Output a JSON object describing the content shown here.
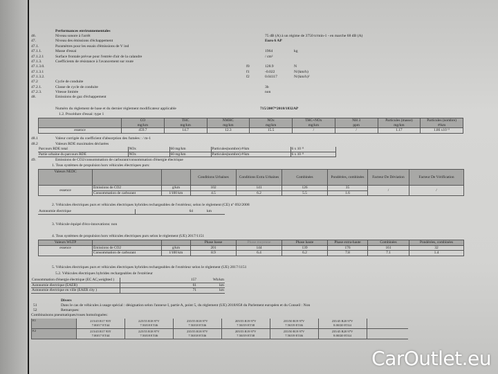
{
  "header": {
    "title": "Performances environnementales"
  },
  "items": [
    {
      "num": "46.",
      "label": "Niveau sonore à l'arrêt",
      "value": "75 dB (A)   à un régime de 3750 tr/min-1 - en marche     68 dB (A)"
    },
    {
      "num": "47.",
      "label": "Niveau des émissions d'échappement",
      "value": "Euro 6 AP"
    },
    {
      "num": "47.1.",
      "label": "Paramètres pour les essais d'émissions de V ind",
      "value": ""
    },
    {
      "num": "47.1.1.",
      "label": "Masse d'essai",
      "value": "1964",
      "unit": "kg"
    },
    {
      "num": "47.1.2.1",
      "label": "Surface frontale prévue pour l'entrée d'air de la calandre",
      "value": "/ cm²"
    },
    {
      "num": "47.1.3.",
      "label": "Coefficients de résistance à l'avancement sur route",
      "value": ""
    },
    {
      "num": "47.1.3.0.",
      "sym": "f0",
      "value": "128.9",
      "unit": "N"
    },
    {
      "num": "47.1.3.1",
      "sym": "f1",
      "value": "-0.022",
      "unit": "N/(km/h)"
    },
    {
      "num": "47.1.3.2.",
      "sym": "f2",
      "value": "0.04117",
      "unit": "N/(km/h)²"
    },
    {
      "num": "47.2",
      "label": "Cycle de conduite",
      "value": ""
    },
    {
      "num": "47.2.1.",
      "label": "Classe de cycle de conduite",
      "value": "3b"
    },
    {
      "num": "47.2.3.",
      "label": "Vitesse limitée",
      "value": "non"
    },
    {
      "num": "48.",
      "label": "Emissions de gaz d'échappement",
      "value": ""
    }
  ],
  "regulation": {
    "label": "Numéro du règlement de base et du dernier règlement modificateur applicable",
    "value": "715/2007*2018/1832AP"
  },
  "type1": {
    "title": "1.2. Procédure d'essai: type 1",
    "headers": [
      [
        "CO",
        "mg/km"
      ],
      [
        "THC",
        "mg/km"
      ],
      [
        "NMHC",
        "mg/km"
      ],
      [
        "NOx",
        "mg/km"
      ],
      [
        "THC+NOx",
        "mg/km"
      ],
      [
        "NH 3",
        "ppm"
      ],
      [
        "Particules (masse)",
        "mg/km"
      ],
      [
        "Particules (nombre)",
        "#/km"
      ]
    ],
    "row": {
      "label": "essence",
      "values": [
        "459.7",
        "14.7",
        "12.3",
        "15.5",
        "/",
        "/",
        "1.17",
        "1.86 x10 ¹¹"
      ]
    }
  },
  "s481": {
    "num": "48.1",
    "label": "Valeur corrigée du coefficient d'absorption des fumées : / m-1"
  },
  "s482": {
    "num": "48.2",
    "label": "Valeurs RDE maximales déclarées"
  },
  "rde": [
    {
      "label": "Parcours RDE total",
      "pollutant": "NOx",
      "value": "60 mg/km",
      "pn_label": "Particules(nombre)  #/km",
      "pn_value": "6 x 10 ¹¹"
    },
    {
      "label": "Partie urbaine du parcours RDE",
      "pollutant": "NOx",
      "value": "60 mg/km",
      "pn_label": "Particules(nombre)  #/km",
      "pn_value": "6 x 10 ¹¹"
    }
  ],
  "s49": {
    "num": "49.",
    "label": "Emissions de CO2/consommation de carburant/consommation d'énergie électrique"
  },
  "nedc": {
    "title": "1. Tous systèmes de propulsion hors véhicules électriques purs:",
    "corner": "Valeurs NEDC",
    "headers": [
      "Conditions Urbaines",
      "Conditions Extra Urbaines",
      "Combinées",
      "Pondérées, combinées",
      "Facteur De Déviation",
      "Facteur De Vérification"
    ],
    "fuel": "essence",
    "rows": [
      {
        "label": "Émissions de CO2",
        "unit": "g/km",
        "values": [
          "102",
          "141",
          "126",
          "35"
        ]
      },
      {
        "label": "Consommation de carburant",
        "unit": "l/100 km",
        "values": [
          "4.5",
          "6.2",
          "5.5",
          "1.6"
        ]
      }
    ],
    "deviation": "/",
    "verification": "/"
  },
  "ev692": {
    "title": "2. Véhicules électriques purs et véhicules électriques hybrides rechargeables de l'extérieur, selon le règlement (CE) nº 692/2008",
    "label": "Autonomie électrique",
    "value": "64",
    "unit": "km"
  },
  "eco": {
    "title": "3. Véhicule équipé d'éco-innovations: non"
  },
  "wltp": {
    "title": "4. Tous systèmes de propulsion hors véhicules électriques purs selon le règlement (UE) 2017/1151",
    "corner": "Valeurs WLTP",
    "headers": [
      "Phase basse",
      "Phase moyenne",
      "Phase haute",
      "Phase extra-haute",
      "Combinées",
      "Pondérées, combinées"
    ],
    "fuel": "essence",
    "rows": [
      {
        "label": "Émissions de CO2",
        "unit": "g/km",
        "values": [
          "201",
          "144",
          "139",
          "176",
          "161",
          "32"
        ]
      },
      {
        "label": "Consommation de carburant",
        "unit": "l/100 km",
        "values": [
          "8.9",
          "6.4",
          "6.2",
          "7.8",
          "7.1",
          "1.4"
        ]
      }
    ]
  },
  "ev1151": {
    "title": "5. Véhicules électriques purs et véhicules électriques hybrides rechargeables de l'extérieur selon le règlement (UE) 2017/1151",
    "subtitle": "5.2. Véhicules électriques hybrides rechargeables de l'extérieur",
    "rows": [
      {
        "label": "Consommation d'énergie électrique (EC AC,weighted )",
        "value": "157",
        "unit": "Wh/km"
      },
      {
        "label": "Autonomie électrique (EAER)",
        "value": "61",
        "unit": "km"
      },
      {
        "label": "Autonomie électrique en ville (EAER city )",
        "value": "71",
        "unit": "km"
      }
    ]
  },
  "divers": {
    "title": "Divers",
    "s51": {
      "num": "51",
      "label": "Dans le cas de véhicules à usage spécial : désignation selon l'annexe I, partie A, point 5, du règlement (UE) 2018/858 du Parlement européen et du Conseil : Non"
    },
    "s52": {
      "num": "52",
      "label": "Remarques:"
    },
    "tires_title": "Combinaisons pneumatiques/roues homologuées:",
    "tires": [
      {
        "axle": "E1",
        "cells": [
          [
            "215/45 R17 93Y",
            "7.00J17 ET44"
          ],
          [
            "225/55 R18 97V",
            "7.50J18 ET46"
          ],
          [
            "235/55 R18 97V",
            "7.50J18 ET46"
          ],
          [
            "205/55 R19 97V",
            "7.50J19 ET38"
          ],
          [
            "235/50 R19 97V",
            "7.50J19 ET46"
          ],
          [
            "235/45 R20 97V",
            "8.00J20 ET44"
          ]
        ]
      },
      {
        "axle": "E2",
        "cells": [
          [
            "215/45 R17 93Y",
            "7.00J17 ET44"
          ],
          [
            "225/55 R18 97V",
            "7.50J18 ET46"
          ],
          [
            "235/55 R18 97V",
            "7.50J18 ET46"
          ],
          [
            "205/55 R19 97V",
            "7.50J19 ET38"
          ],
          [
            "235/50 R19 97V",
            "7.50J19 ET46"
          ],
          [
            "235/45 R20 97V",
            "8.00J20 ET44"
          ]
        ]
      }
    ]
  },
  "watermark": "CarOutlet.eu"
}
